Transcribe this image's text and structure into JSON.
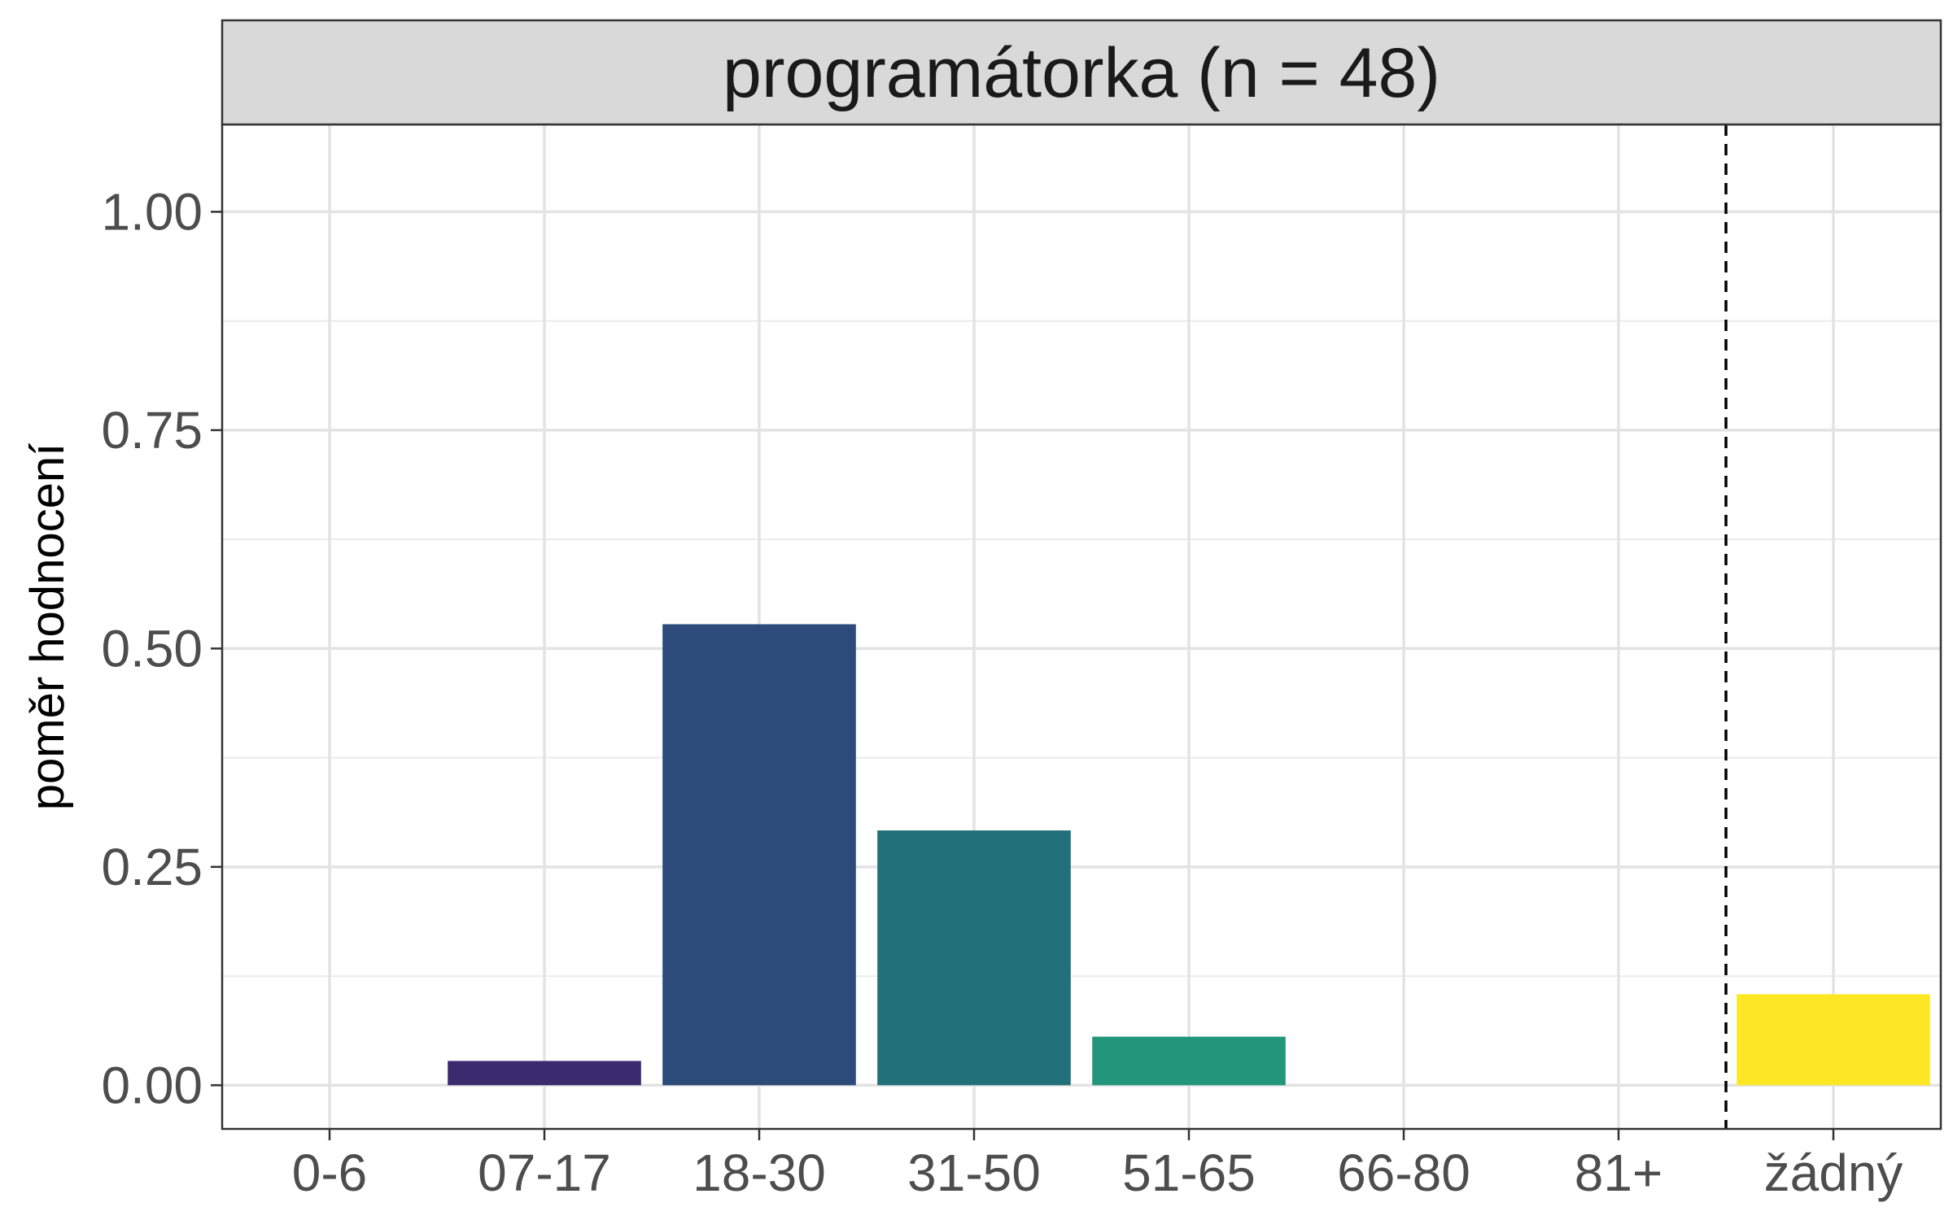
{
  "chart_data": {
    "type": "bar",
    "facet_title": "programátorka (n = 48)",
    "title": "",
    "xlabel": "",
    "ylabel": "poměr hodnocení",
    "categories": [
      "0-6",
      "07-17",
      "18-30",
      "31-50",
      "51-65",
      "66-80",
      "81+",
      "žádný"
    ],
    "values": [
      0.0,
      0.0278,
      0.5278,
      0.2917,
      0.0556,
      0.0,
      0.0,
      0.1042
    ],
    "bar_colors": [
      "#440154",
      "#3B2A6E",
      "#2C4A7A",
      "#21707A",
      "#22967A",
      "#5EC962",
      "#ABD84A",
      "#FDE725"
    ],
    "ylim": [
      -0.05,
      1.1
    ],
    "y_ticks": [
      0.0,
      0.25,
      0.5,
      0.75,
      1.0
    ],
    "y_tick_labels": [
      "0.00",
      "0.25",
      "0.50",
      "0.75",
      "1.00"
    ],
    "grid": true,
    "reference_line": {
      "between": [
        "81+",
        "žádný"
      ],
      "style": "dashed",
      "color": "#000000"
    }
  }
}
